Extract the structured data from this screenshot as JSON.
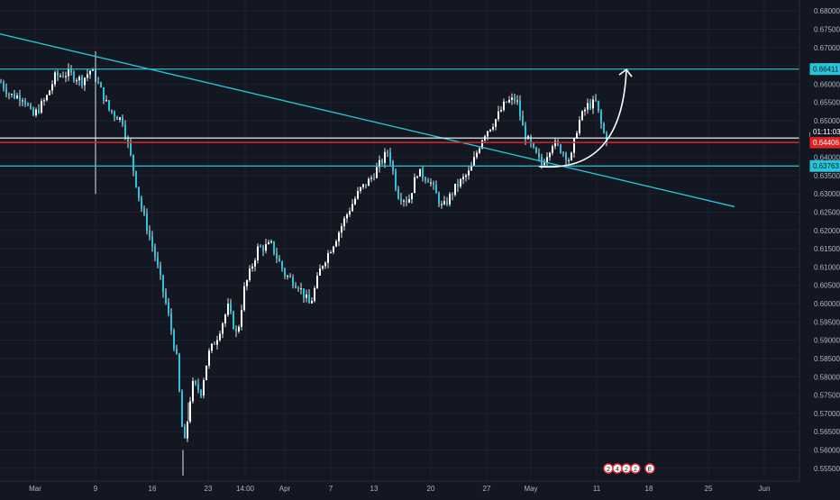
{
  "colors": {
    "background": "#131722",
    "grid": "#1e222d",
    "axis_text": "#b2b5be",
    "candle_up": "#ffffff",
    "candle_down": "#26c6da",
    "wick": "#dfe3ea",
    "trendline": "#26c6da",
    "support_line": "#26c6da",
    "resistance_line": "#26c6da",
    "current_price_line": "#e02424",
    "annotation_arrow": "#ffffff",
    "label_bg_cyan": "#26c6da",
    "label_bg_red": "#e02424",
    "label_bg_white": "#ffffff"
  },
  "chart_data": {
    "type": "candlestick",
    "title": "",
    "xlabel": "",
    "ylabel": "",
    "ylim": [
      0.5515,
      0.683
    ],
    "grid": true,
    "price_axis_position": "right",
    "y_ticks": [
      "0.68000",
      "0.67500",
      "0.67000",
      "0.66500",
      "0.66000",
      "0.65500",
      "0.65000",
      "0.64500",
      "0.64000",
      "0.63500",
      "0.63000",
      "0.62500",
      "0.62000",
      "0.61500",
      "0.61000",
      "0.60500",
      "0.60000",
      "0.59500",
      "0.59000",
      "0.58500",
      "0.58000",
      "0.57500",
      "0.57000",
      "0.56500",
      "0.56000",
      "0.55500"
    ],
    "x_ticks": [
      "Mar",
      "9",
      "16",
      "23",
      "14:00",
      "Apr",
      "7",
      "13",
      "20",
      "27",
      "May",
      "11",
      "18",
      "25",
      "Jun"
    ],
    "close_path": [
      {
        "t": 0,
        "c": 0.6605
      },
      {
        "t": 10,
        "c": 0.657
      },
      {
        "t": 25,
        "c": 0.6565
      },
      {
        "t": 35,
        "c": 0.651
      },
      {
        "t": 50,
        "c": 0.656
      },
      {
        "t": 60,
        "c": 0.662
      },
      {
        "t": 75,
        "c": 0.663
      },
      {
        "t": 90,
        "c": 0.661
      },
      {
        "t": 100,
        "c": 0.664
      },
      {
        "t": 108,
        "c": 0.66
      },
      {
        "t": 120,
        "c": 0.653
      },
      {
        "t": 135,
        "c": 0.65
      },
      {
        "t": 145,
        "c": 0.639
      },
      {
        "t": 155,
        "c": 0.627
      },
      {
        "t": 170,
        "c": 0.614
      },
      {
        "t": 185,
        "c": 0.598
      },
      {
        "t": 195,
        "c": 0.585
      },
      {
        "t": 203,
        "c": 0.56
      },
      {
        "t": 212,
        "c": 0.578
      },
      {
        "t": 222,
        "c": 0.576
      },
      {
        "t": 230,
        "c": 0.586
      },
      {
        "t": 240,
        "c": 0.591
      },
      {
        "t": 252,
        "c": 0.599
      },
      {
        "t": 262,
        "c": 0.591
      },
      {
        "t": 270,
        "c": 0.604
      },
      {
        "t": 285,
        "c": 0.615
      },
      {
        "t": 300,
        "c": 0.616
      },
      {
        "t": 315,
        "c": 0.608
      },
      {
        "t": 330,
        "c": 0.605
      },
      {
        "t": 343,
        "c": 0.5995
      },
      {
        "t": 355,
        "c": 0.61
      },
      {
        "t": 370,
        "c": 0.617
      },
      {
        "t": 385,
        "c": 0.625
      },
      {
        "t": 398,
        "c": 0.631
      },
      {
        "t": 410,
        "c": 0.634
      },
      {
        "t": 420,
        "c": 0.638
      },
      {
        "t": 430,
        "c": 0.642
      },
      {
        "t": 440,
        "c": 0.63
      },
      {
        "t": 452,
        "c": 0.628
      },
      {
        "t": 462,
        "c": 0.636
      },
      {
        "t": 475,
        "c": 0.634
      },
      {
        "t": 490,
        "c": 0.626
      },
      {
        "t": 505,
        "c": 0.632
      },
      {
        "t": 520,
        "c": 0.636
      },
      {
        "t": 535,
        "c": 0.646
      },
      {
        "t": 548,
        "c": 0.65
      },
      {
        "t": 560,
        "c": 0.655
      },
      {
        "t": 572,
        "c": 0.656
      },
      {
        "t": 580,
        "c": 0.647
      },
      {
        "t": 590,
        "c": 0.642
      },
      {
        "t": 600,
        "c": 0.638
      },
      {
        "t": 612,
        "c": 0.644
      },
      {
        "t": 622,
        "c": 0.642
      },
      {
        "t": 632,
        "c": 0.639
      },
      {
        "t": 640,
        "c": 0.649
      },
      {
        "t": 650,
        "c": 0.654
      },
      {
        "t": 660,
        "c": 0.655
      },
      {
        "t": 668,
        "c": 0.647
      },
      {
        "t": 672,
        "c": 0.645
      }
    ],
    "horizontal_lines": [
      {
        "name": "resistance",
        "price": 0.66411,
        "label": "0.66411",
        "label_style": "cyan"
      },
      {
        "name": "reference",
        "price": 0.64528,
        "label": "0.64528",
        "label_style": "white"
      },
      {
        "name": "current-price",
        "price": 0.64406,
        "label": "0.64406",
        "label_style": "red"
      },
      {
        "name": "support",
        "price": 0.63763,
        "label": "0.63763",
        "label_style": "cyan"
      }
    ],
    "countdown_label": "01:11:03",
    "trendline": {
      "start": {
        "t": -5,
        "price": 0.674
      },
      "end": {
        "t": 815,
        "price": 0.6265
      }
    },
    "projection_arrow": {
      "start": {
        "t": 598,
        "price": 0.6375
      },
      "end": {
        "t": 695,
        "price": 0.664
      }
    },
    "event_markers": [
      "2",
      "4",
      "2",
      "2",
      "E"
    ]
  }
}
